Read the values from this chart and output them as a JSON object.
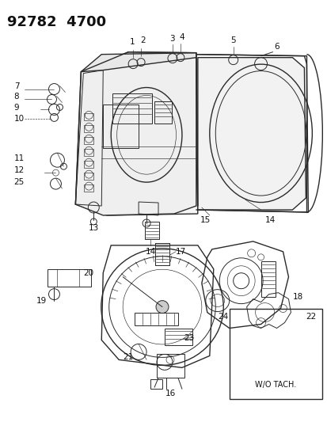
{
  "title": "92782  4700",
  "bg_color": "#ffffff",
  "title_fontsize": 12,
  "line_color": "#2a2a2a",
  "text_color": "#111111",
  "label_fontsize": 7.5,
  "lw_main": 1.0,
  "lw_med": 0.7,
  "lw_thin": 0.45
}
